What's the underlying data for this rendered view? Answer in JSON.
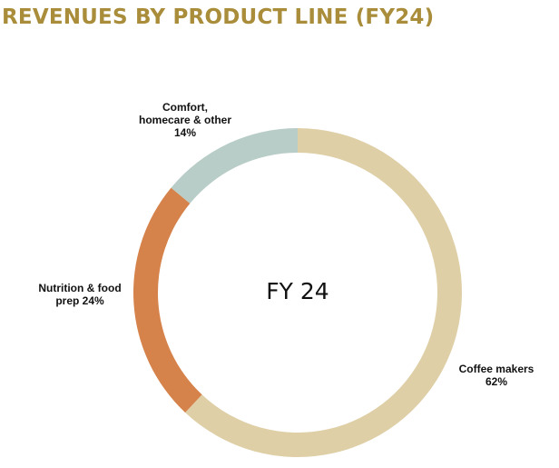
{
  "colors": {
    "title": "#A98D3A",
    "background": "#FFFFFF"
  },
  "chart_data": {
    "type": "pie",
    "title": "REVENUES BY PRODUCT LINE (FY24)",
    "center_label": "FY 24",
    "donut": true,
    "start": "12 o'clock",
    "direction": "clockwise",
    "slices": [
      {
        "label_lines": [
          "Coffee makers",
          "62%"
        ],
        "category": "Coffee makers",
        "value": 62,
        "color": "#DFCFA7"
      },
      {
        "label_lines": [
          "Nutrition & food",
          "prep 24%"
        ],
        "category": "Nutrition & food prep",
        "value": 24,
        "color": "#D5824B"
      },
      {
        "label_lines": [
          "Comfort,",
          "homecare & other",
          "14%"
        ],
        "category": "Comfort, homecare & other",
        "value": 14,
        "color": "#B8CDC7"
      }
    ]
  }
}
